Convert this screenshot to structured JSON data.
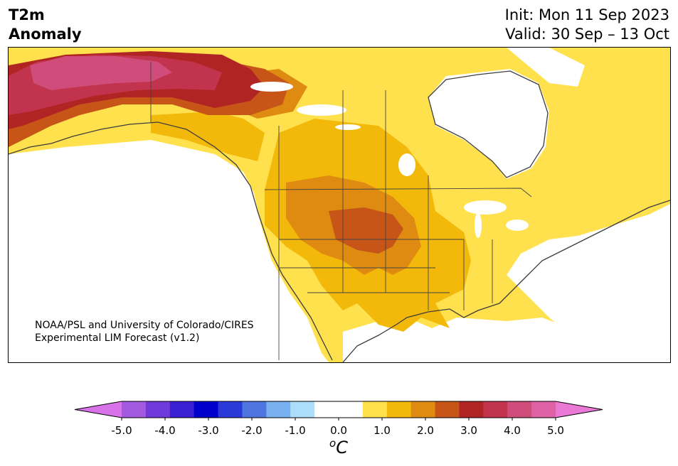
{
  "header": {
    "variable_line1": "T2m",
    "variable_line2": "Anomaly",
    "init": "Init: Mon 11 Sep 2023",
    "valid": "Valid: 30 Sep – 13 Oct"
  },
  "map": {
    "region": "North America",
    "credit_line1": "NOAA/PSL and University of Colorado/CIRES",
    "credit_line2": "Experimental LIM Forecast (v1.2)",
    "anomaly_regions": [
      {
        "area": "Northern Alaska",
        "level": "4.0 to 4.5"
      },
      {
        "area": "Alaska",
        "level": "3.0 to 3.5"
      },
      {
        "area": "Yukon / western Northwest Territories",
        "level": "2.5 to 3.0"
      },
      {
        "area": "Northern Rockies / Central Plains",
        "level": "2.0 to 2.5"
      },
      {
        "area": "Great Plains",
        "level": "1.5 to 2.0"
      },
      {
        "area": "Western & Central US / Prairies",
        "level": "1.0 to 1.5"
      },
      {
        "area": "Eastern US / Eastern Canada / Pacific Coast",
        "level": "0.5 to 1.0"
      },
      {
        "area": "Hudson Bay region / Pacific Northwest offshore",
        "level": "-0.5 to 0.5"
      }
    ]
  },
  "colorbar": {
    "unit_base": "C",
    "unit_sup": "o",
    "ticks": [
      "-5.0",
      "-4.0",
      "-3.0",
      "-2.0",
      "-1.0",
      "0.0",
      "1.0",
      "2.0",
      "3.0",
      "4.0",
      "5.0"
    ],
    "range": [
      -5.0,
      5.0
    ],
    "extend": "both",
    "colors": [
      "#d772e8",
      "#a358e0",
      "#6f3ad9",
      "#3b1fd2",
      "#0000cc",
      "#2a3ad8",
      "#4f75e0",
      "#79b0ef",
      "#addef9",
      "#ffffff",
      "#ffffff",
      "#ffe04d",
      "#f2b90a",
      "#df8b12",
      "#c75518",
      "#b02524",
      "#c2344d",
      "#d04d7b",
      "#de62a5",
      "#ea79d6"
    ]
  }
}
